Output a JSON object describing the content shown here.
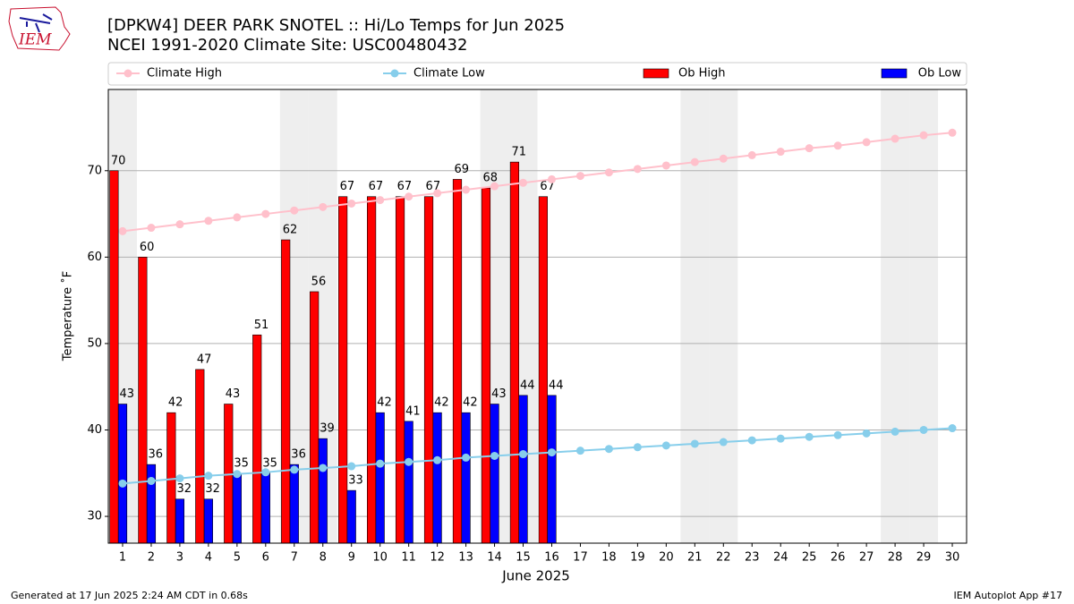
{
  "chart_data": {
    "type": "bar_line",
    "title": "[DPKW4] DEER PARK SNOTEL :: Hi/Lo Temps for Jun 2025",
    "subtitle": "NCEI 1991-2020 Climate Site: USC00480432",
    "x_label": "June 2025",
    "y_label": "Temperature ˚F",
    "footer_left": "Generated at 17 Jun 2025 2:24 AM CDT in 0.68s",
    "footer_right": "IEM Autoplot App #17",
    "logo_text": "IEM",
    "x": [
      1,
      2,
      3,
      4,
      5,
      6,
      7,
      8,
      9,
      10,
      11,
      12,
      13,
      14,
      15,
      16,
      17,
      18,
      19,
      20,
      21,
      22,
      23,
      24,
      25,
      26,
      27,
      28,
      29,
      30
    ],
    "xlim": [
      0.5,
      30.5
    ],
    "xticks": [
      1,
      2,
      3,
      4,
      5,
      6,
      7,
      8,
      9,
      10,
      11,
      12,
      13,
      14,
      15,
      16,
      17,
      18,
      19,
      20,
      21,
      22,
      23,
      24,
      25,
      26,
      27,
      28,
      29,
      30
    ],
    "ylim": [
      26.9,
      79.4
    ],
    "yticks": [
      30,
      40,
      50,
      60,
      70
    ],
    "grid": true,
    "shaded_days": [
      1,
      7,
      8,
      14,
      15,
      21,
      22,
      28,
      29
    ],
    "shade_color": "#eeeeee",
    "series": [
      {
        "name": "Climate High",
        "kind": "line",
        "color": "#ffc0cb",
        "values": [
          63.0,
          63.4,
          63.8,
          64.2,
          64.6,
          65.0,
          65.4,
          65.8,
          66.2,
          66.6,
          67.0,
          67.4,
          67.8,
          68.2,
          68.6,
          69.0,
          69.4,
          69.8,
          70.2,
          70.6,
          71.0,
          71.4,
          71.8,
          72.2,
          72.6,
          72.9,
          73.3,
          73.7,
          74.1,
          74.4
        ]
      },
      {
        "name": "Climate Low",
        "kind": "line",
        "color": "#87ceeb",
        "values": [
          33.8,
          34.1,
          34.4,
          34.7,
          34.9,
          35.1,
          35.4,
          35.6,
          35.8,
          36.1,
          36.3,
          36.5,
          36.8,
          37.0,
          37.2,
          37.4,
          37.6,
          37.8,
          38.0,
          38.2,
          38.4,
          38.6,
          38.8,
          39.0,
          39.2,
          39.4,
          39.6,
          39.8,
          40.0,
          40.2
        ]
      },
      {
        "name": "Ob High",
        "kind": "bar",
        "color": "#ff0000",
        "offset": -0.3,
        "values": [
          70,
          60,
          42,
          47,
          43,
          51,
          62,
          56,
          67,
          67,
          67,
          67,
          69,
          68,
          71,
          67,
          null,
          null,
          null,
          null,
          null,
          null,
          null,
          null,
          null,
          null,
          null,
          null,
          null,
          null
        ]
      },
      {
        "name": "Ob Low",
        "kind": "bar",
        "color": "#0000ff",
        "offset": 0,
        "values": [
          43,
          36,
          32,
          32,
          35,
          35,
          36,
          39,
          33,
          42,
          41,
          42,
          42,
          43,
          44,
          44,
          null,
          null,
          null,
          null,
          null,
          null,
          null,
          null,
          null,
          null,
          null,
          null,
          null,
          null
        ]
      }
    ]
  }
}
